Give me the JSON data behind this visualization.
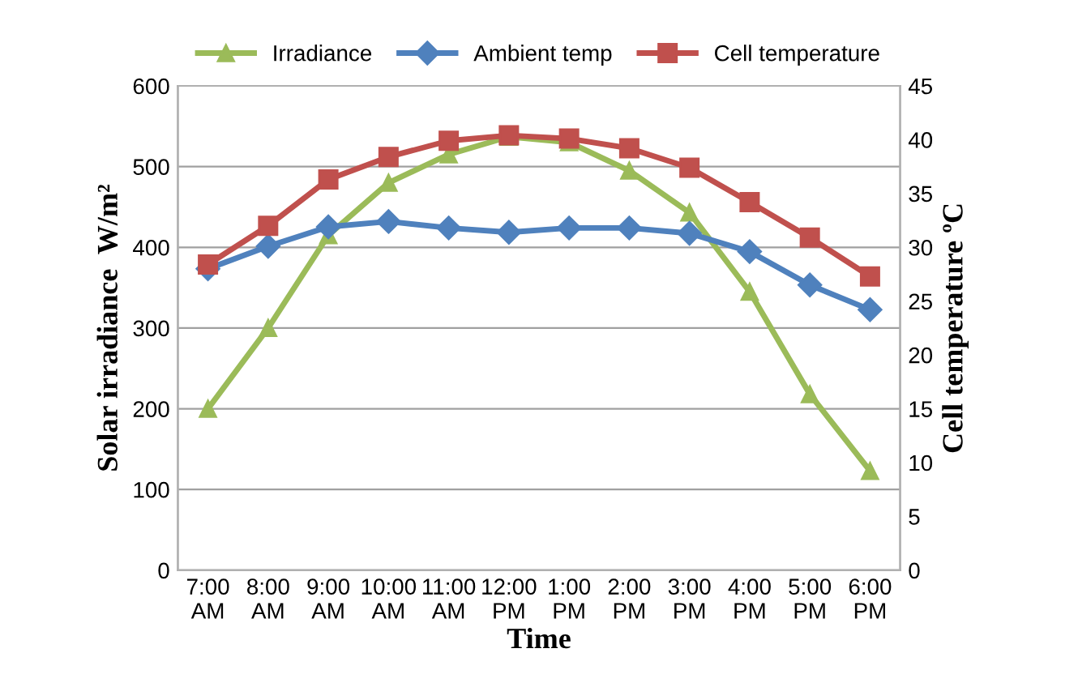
{
  "chart_data": {
    "type": "line",
    "xlabel": "Time",
    "ylabel": "Solar irradiance  W/m²",
    "y2label": "Cell temperature ºC",
    "categories": [
      "7:00\nAM",
      "8:00\nAM",
      "9:00\nAM",
      "10:00\nAM",
      "11:00\nAM",
      "12:00\nPM",
      "1:00\nPM",
      "2:00\nPM",
      "3:00\nPM",
      "4:00\nPM",
      "5:00\nPM",
      "6:00\nPM"
    ],
    "series": [
      {
        "name": "Irradiance",
        "color": "#9bbb59",
        "marker": "triangle",
        "values": [
          200,
          300,
          415,
          480,
          515,
          537,
          530,
          495,
          443,
          345,
          218,
          123
        ]
      },
      {
        "name": "Ambient temp",
        "color": "#4f81bd",
        "marker": "diamond",
        "axis": "y2",
        "values": [
          28,
          30.1,
          31.9,
          32.4,
          31.8,
          31.4,
          31.8,
          31.8,
          31.3,
          29.6,
          26.5,
          24.2
        ]
      },
      {
        "name": "Cell temperature",
        "color": "#c0504d",
        "marker": "square",
        "axis": "y2",
        "values": [
          28.4,
          32,
          36.3,
          38.4,
          39.9,
          40.4,
          40.1,
          39.2,
          37.4,
          34.2,
          30.9,
          27.3
        ]
      }
    ],
    "ylim": [
      0,
      600
    ],
    "yticks": [
      0,
      100,
      200,
      300,
      400,
      500,
      600
    ],
    "y2lim": [
      0,
      45
    ],
    "y2ticks": [
      0,
      5,
      10,
      15,
      20,
      25,
      30,
      35,
      40,
      45
    ],
    "grid": "y",
    "legend": "top",
    "line_style": "solid"
  }
}
